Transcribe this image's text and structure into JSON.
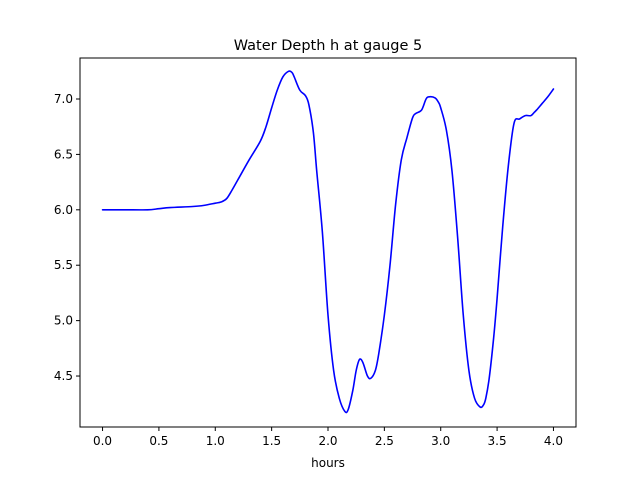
{
  "chart_data": {
    "type": "line",
    "title": "Water Depth h at gauge 5",
    "xlabel": "hours",
    "ylabel": "",
    "xlim": [
      -0.2,
      4.2
    ],
    "ylim": [
      4.04,
      7.37
    ],
    "xticks": [
      0.0,
      0.5,
      1.0,
      1.5,
      2.0,
      2.5,
      3.0,
      3.5,
      4.0
    ],
    "xtick_labels": [
      "0.0",
      "0.5",
      "1.0",
      "1.5",
      "2.0",
      "2.5",
      "3.0",
      "3.5",
      "4.0"
    ],
    "yticks": [
      4.5,
      5.0,
      5.5,
      6.0,
      6.5,
      7.0
    ],
    "ytick_labels": [
      "4.5",
      "5.0",
      "5.5",
      "6.0",
      "6.5",
      "7.0"
    ],
    "grid": false,
    "series": [
      {
        "color": "#0000ff",
        "x": [
          0.0,
          0.2,
          0.4,
          0.5,
          0.6,
          0.8,
          0.9,
          1.0,
          1.05,
          1.1,
          1.15,
          1.2,
          1.3,
          1.4,
          1.45,
          1.5,
          1.55,
          1.6,
          1.65,
          1.68,
          1.7,
          1.75,
          1.8,
          1.83,
          1.87,
          1.9,
          1.95,
          2.0,
          2.05,
          2.1,
          2.15,
          2.18,
          2.22,
          2.25,
          2.28,
          2.31,
          2.35,
          2.38,
          2.42,
          2.45,
          2.5,
          2.55,
          2.6,
          2.65,
          2.7,
          2.75,
          2.78,
          2.83,
          2.87,
          2.9,
          2.95,
          2.98,
          3.0,
          3.05,
          3.1,
          3.15,
          3.2,
          3.25,
          3.3,
          3.35,
          3.38,
          3.4,
          3.43,
          3.47,
          3.5,
          3.55,
          3.6,
          3.65,
          3.7,
          3.75,
          3.8,
          3.83,
          3.85,
          3.9,
          3.95,
          4.0
        ],
        "y": [
          6.0,
          6.0,
          6.0,
          6.01,
          6.02,
          6.03,
          6.04,
          6.06,
          6.07,
          6.1,
          6.18,
          6.27,
          6.45,
          6.62,
          6.75,
          6.92,
          7.08,
          7.2,
          7.25,
          7.24,
          7.2,
          7.08,
          7.03,
          6.95,
          6.7,
          6.35,
          5.8,
          5.05,
          4.55,
          4.3,
          4.18,
          4.2,
          4.37,
          4.55,
          4.65,
          4.62,
          4.5,
          4.48,
          4.55,
          4.7,
          5.05,
          5.5,
          6.05,
          6.45,
          6.65,
          6.83,
          6.87,
          6.9,
          7.0,
          7.02,
          7.01,
          6.97,
          6.92,
          6.72,
          6.35,
          5.75,
          5.05,
          4.55,
          4.3,
          4.22,
          4.24,
          4.3,
          4.48,
          4.85,
          5.2,
          5.85,
          6.4,
          6.78,
          6.82,
          6.85,
          6.85,
          6.88,
          6.9,
          6.96,
          7.02,
          7.09
        ]
      }
    ]
  }
}
